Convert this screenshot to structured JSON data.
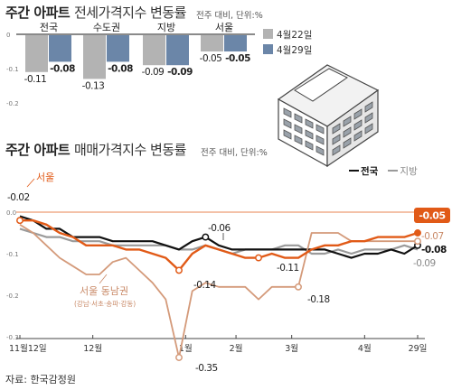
{
  "top_chart": {
    "title_bold": "주간 아파트",
    "title_light": "전세가격지수 변동률",
    "unit": "전주 대비, 단위:%",
    "legend": [
      {
        "label": "4월22일",
        "color": "#b3b3b3"
      },
      {
        "label": "4월29일",
        "color": "#6b86a8"
      }
    ],
    "y_ticks": [
      "0",
      "-0.1",
      "-0.2"
    ]
  },
  "bottom_chart": {
    "title_bold": "주간 아파트",
    "title_light": "매매가격지수 변동률",
    "unit": "전주 대비, 단위:%",
    "legend": [
      {
        "label": "전국",
        "color": "#111111"
      },
      {
        "label": "지방",
        "color": "#9a9a9a"
      }
    ],
    "y_ticks": [
      "0.0",
      "-0.1",
      "-0.2",
      "-0.3"
    ],
    "x_ticks": [
      "11월12일",
      "12월",
      "1월",
      "2월",
      "3월",
      "4월",
      "29일"
    ],
    "seoul_label": "서울",
    "gangnam_label": "서울 동남권",
    "gangnam_sub": "(강남·서초·송파·강동)",
    "annotations": {
      "seoul_start": "-0.02",
      "seoul_end": "-0.05",
      "nat_end": "-0.08",
      "nat_feb": "-0.06",
      "seoul_jan": "-0.14",
      "gangnam_min": "-0.35",
      "seoul_mar": "-0.11",
      "gangnam_mar": "-0.18",
      "gangnam_end": "-0.07",
      "local_end": "-0.09"
    }
  },
  "source": "자료: 한국감정원",
  "chart_data": [
    {
      "type": "bar",
      "title": "주간 아파트 전세가격지수 변동률",
      "unit": "전주 대비, 단위:%",
      "categories": [
        "전국",
        "수도권",
        "지방",
        "서울"
      ],
      "series": [
        {
          "name": "4월22일",
          "values": [
            -0.11,
            -0.13,
            -0.09,
            -0.05
          ],
          "labels": [
            "-0.11",
            "-0.13",
            "-0.09",
            "-0.05"
          ]
        },
        {
          "name": "4월29일",
          "values": [
            -0.08,
            -0.08,
            -0.09,
            -0.05
          ],
          "labels": [
            "-0.08",
            "-0.08",
            "-0.09",
            "-0.05"
          ]
        }
      ],
      "ylim": [
        -0.2,
        0
      ]
    },
    {
      "type": "line",
      "title": "주간 아파트 매매가격지수 변동률",
      "unit": "전주 대비, 단위:%",
      "x_ticks": [
        "11월12일",
        "12월",
        "1월",
        "2월",
        "3월",
        "4월",
        "29일"
      ],
      "ylim": [
        -0.35,
        0.02
      ],
      "series": [
        {
          "name": "전국",
          "color": "#111111",
          "values": [
            -0.01,
            -0.02,
            -0.04,
            -0.04,
            -0.06,
            -0.06,
            -0.06,
            -0.07,
            -0.07,
            -0.07,
            -0.07,
            -0.08,
            -0.09,
            -0.07,
            -0.06,
            -0.08,
            -0.09,
            -0.09,
            -0.09,
            -0.09,
            -0.09,
            -0.09,
            -0.09,
            -0.09,
            -0.1,
            -0.11,
            -0.1,
            -0.1,
            -0.09,
            -0.1,
            -0.08
          ]
        },
        {
          "name": "지방",
          "color": "#9a9a9a",
          "values": [
            -0.04,
            -0.05,
            -0.06,
            -0.06,
            -0.07,
            -0.07,
            -0.07,
            -0.08,
            -0.08,
            -0.08,
            -0.08,
            -0.08,
            -0.09,
            -0.09,
            -0.08,
            -0.09,
            -0.1,
            -0.09,
            -0.09,
            -0.09,
            -0.08,
            -0.08,
            -0.1,
            -0.1,
            -0.09,
            -0.1,
            -0.09,
            -0.09,
            -0.09,
            -0.08,
            -0.09
          ]
        },
        {
          "name": "서울",
          "color": "#e15a17",
          "values": [
            -0.02,
            -0.02,
            -0.03,
            -0.05,
            -0.06,
            -0.08,
            -0.08,
            -0.08,
            -0.09,
            -0.09,
            -0.1,
            -0.11,
            -0.14,
            -0.1,
            -0.08,
            -0.09,
            -0.1,
            -0.11,
            -0.11,
            -0.1,
            -0.11,
            -0.11,
            -0.09,
            -0.08,
            -0.08,
            -0.07,
            -0.07,
            -0.06,
            -0.06,
            -0.06,
            -0.05
          ]
        },
        {
          "name": "서울 동남권",
          "color": "#d49a7a",
          "values": [
            -0.03,
            -0.05,
            -0.08,
            -0.11,
            -0.13,
            -0.15,
            -0.15,
            -0.12,
            -0.11,
            -0.14,
            -0.17,
            -0.21,
            -0.35,
            -0.19,
            -0.17,
            -0.18,
            -0.18,
            -0.18,
            -0.21,
            -0.18,
            -0.18,
            -0.18,
            -0.05,
            -0.05,
            -0.05,
            -0.07,
            -0.07,
            -0.07,
            -0.07,
            -0.07,
            -0.07
          ]
        }
      ]
    }
  ]
}
